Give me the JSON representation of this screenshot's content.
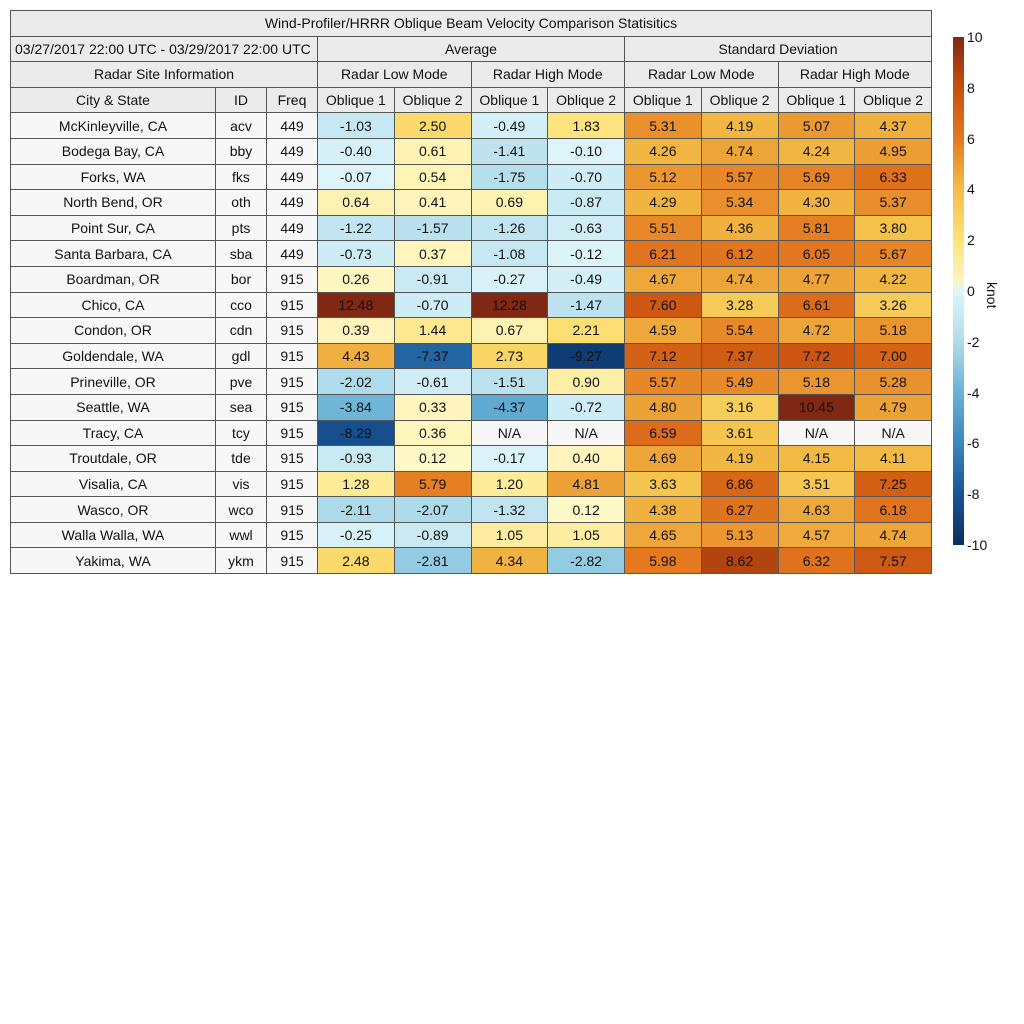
{
  "chart_data": {
    "type": "table",
    "title": "Wind-Profiler/HRRR Oblique Beam Velocity Comparison Statisitics",
    "date_range": "03/27/2017 22:00 UTC - 03/29/2017 22:00 UTC",
    "group_headers": {
      "info": "Radar Site Information",
      "average": "Average",
      "std": "Standard Deviation"
    },
    "mode_headers": [
      "Radar Low Mode",
      "Radar High Mode",
      "Radar Low Mode",
      "Radar High Mode"
    ],
    "columns": [
      "City & State",
      "ID",
      "Freq",
      "Oblique 1",
      "Oblique 2",
      "Oblique 1",
      "Oblique 2",
      "Oblique 1",
      "Oblique 2",
      "Oblique 1",
      "Oblique 2"
    ],
    "rows": [
      [
        "McKinleyville, CA",
        "acv",
        "449",
        "-1.03",
        "2.50",
        "-0.49",
        "1.83",
        "5.31",
        "4.19",
        "5.07",
        "4.37"
      ],
      [
        "Bodega Bay, CA",
        "bby",
        "449",
        "-0.40",
        "0.61",
        "-1.41",
        "-0.10",
        "4.26",
        "4.74",
        "4.24",
        "4.95"
      ],
      [
        "Forks, WA",
        "fks",
        "449",
        "-0.07",
        "0.54",
        "-1.75",
        "-0.70",
        "5.12",
        "5.57",
        "5.69",
        "6.33"
      ],
      [
        "North Bend, OR",
        "oth",
        "449",
        "0.64",
        "0.41",
        "0.69",
        "-0.87",
        "4.29",
        "5.34",
        "4.30",
        "5.37"
      ],
      [
        "Point Sur, CA",
        "pts",
        "449",
        "-1.22",
        "-1.57",
        "-1.26",
        "-0.63",
        "5.51",
        "4.36",
        "5.81",
        "3.80"
      ],
      [
        "Santa Barbara, CA",
        "sba",
        "449",
        "-0.73",
        "0.37",
        "-1.08",
        "-0.12",
        "6.21",
        "6.12",
        "6.05",
        "5.67"
      ],
      [
        "Boardman, OR",
        "bor",
        "915",
        "0.26",
        "-0.91",
        "-0.27",
        "-0.49",
        "4.67",
        "4.74",
        "4.77",
        "4.22"
      ],
      [
        "Chico, CA",
        "cco",
        "915",
        "12.48",
        "-0.70",
        "12.28",
        "-1.47",
        "7.60",
        "3.28",
        "6.61",
        "3.26"
      ],
      [
        "Condon, OR",
        "cdn",
        "915",
        "0.39",
        "1.44",
        "0.67",
        "2.21",
        "4.59",
        "5.54",
        "4.72",
        "5.18"
      ],
      [
        "Goldendale, WA",
        "gdl",
        "915",
        "4.43",
        "-7.37",
        "2.73",
        "-9.27",
        "7.12",
        "7.37",
        "7.72",
        "7.00"
      ],
      [
        "Prineville, OR",
        "pve",
        "915",
        "-2.02",
        "-0.61",
        "-1.51",
        "0.90",
        "5.57",
        "5.49",
        "5.18",
        "5.28"
      ],
      [
        "Seattle, WA",
        "sea",
        "915",
        "-3.84",
        "0.33",
        "-4.37",
        "-0.72",
        "4.80",
        "3.16",
        "10.45",
        "4.79"
      ],
      [
        "Tracy, CA",
        "tcy",
        "915",
        "-8.29",
        "0.36",
        "N/A",
        "N/A",
        "6.59",
        "3.61",
        "N/A",
        "N/A"
      ],
      [
        "Troutdale, OR",
        "tde",
        "915",
        "-0.93",
        "0.12",
        "-0.17",
        "0.40",
        "4.69",
        "4.19",
        "4.15",
        "4.11"
      ],
      [
        "Visalia, CA",
        "vis",
        "915",
        "1.28",
        "5.79",
        "1.20",
        "4.81",
        "3.63",
        "6.86",
        "3.51",
        "7.25"
      ],
      [
        "Wasco, OR",
        "wco",
        "915",
        "-2.11",
        "-2.07",
        "-1.32",
        "0.12",
        "4.38",
        "6.27",
        "4.63",
        "6.18"
      ],
      [
        "Walla Walla, WA",
        "wwl",
        "915",
        "-0.25",
        "-0.89",
        "1.05",
        "1.05",
        "4.65",
        "5.13",
        "4.57",
        "4.74"
      ],
      [
        "Yakima, WA",
        "ykm",
        "915",
        "2.48",
        "-2.81",
        "4.34",
        "-2.82",
        "5.98",
        "8.62",
        "6.32",
        "7.57"
      ]
    ],
    "colorbar": {
      "label": "knot",
      "range": [
        -10,
        10
      ],
      "ticks": [
        "10",
        "8",
        "6",
        "4",
        "2",
        "0",
        "-2",
        "-4",
        "-6",
        "-8",
        "-10"
      ]
    },
    "na_color": "#f7f7f7"
  }
}
